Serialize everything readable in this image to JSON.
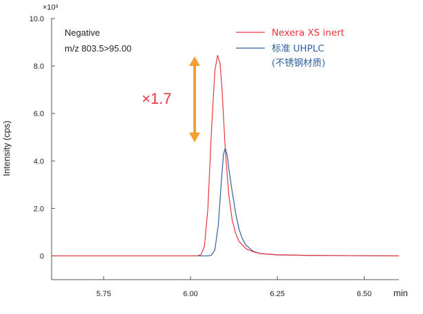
{
  "chart_data": {
    "type": "line",
    "xlabel": "min",
    "ylabel": "Intensity (cps)",
    "y_multiplier": "×10³",
    "xlim": [
      5.6,
      6.6
    ],
    "ylim": [
      -1.0,
      10.0
    ],
    "x_ticks": [
      5.75,
      6.0,
      6.25,
      6.5
    ],
    "x_tick_labels": [
      "5.75",
      "6.00",
      "6.25",
      "6.50"
    ],
    "y_ticks": [
      0,
      2,
      4,
      6,
      8,
      10
    ],
    "y_tick_labels": [
      "0",
      "2.0",
      "4.0",
      "6.0",
      "8.0",
      "10.0"
    ],
    "grid": false,
    "legend_position": "top-right",
    "annotation": {
      "mode": "Negative",
      "transition": "m/z 803.5>95.00",
      "fold_change": "×1.7"
    },
    "colors": {
      "red": "#e8343b",
      "blue": "#2f5f9e",
      "arrow": "#f5a030"
    },
    "series": [
      {
        "name": "Nexera XS inert",
        "color": "#e8343b",
        "points": [
          [
            5.6,
            0.0
          ],
          [
            6.02,
            0.0
          ],
          [
            6.03,
            0.05
          ],
          [
            6.04,
            0.4
          ],
          [
            6.05,
            2.0
          ],
          [
            6.06,
            5.2
          ],
          [
            6.07,
            7.8
          ],
          [
            6.078,
            8.45
          ],
          [
            6.085,
            8.1
          ],
          [
            6.09,
            7.2
          ],
          [
            6.1,
            4.5
          ],
          [
            6.11,
            2.6
          ],
          [
            6.12,
            1.5
          ],
          [
            6.13,
            0.95
          ],
          [
            6.14,
            0.6
          ],
          [
            6.16,
            0.3
          ],
          [
            6.18,
            0.18
          ],
          [
            6.2,
            0.1
          ],
          [
            6.25,
            0.05
          ],
          [
            6.35,
            0.02
          ],
          [
            6.6,
            0.0
          ]
        ]
      },
      {
        "name": "标准 UHPLC",
        "name_line2": "(不锈钢材质)",
        "color": "#2f5f9e",
        "points": [
          [
            5.6,
            0.0
          ],
          [
            6.05,
            0.0
          ],
          [
            6.06,
            0.03
          ],
          [
            6.07,
            0.25
          ],
          [
            6.08,
            1.3
          ],
          [
            6.088,
            3.0
          ],
          [
            6.095,
            4.3
          ],
          [
            6.1,
            4.55
          ],
          [
            6.106,
            4.2
          ],
          [
            6.11,
            3.7
          ],
          [
            6.12,
            2.7
          ],
          [
            6.13,
            1.8
          ],
          [
            6.14,
            1.1
          ],
          [
            6.15,
            0.7
          ],
          [
            6.16,
            0.45
          ],
          [
            6.18,
            0.2
          ],
          [
            6.2,
            0.1
          ],
          [
            6.25,
            0.04
          ],
          [
            6.35,
            0.02
          ],
          [
            6.6,
            0.0
          ]
        ]
      }
    ]
  }
}
